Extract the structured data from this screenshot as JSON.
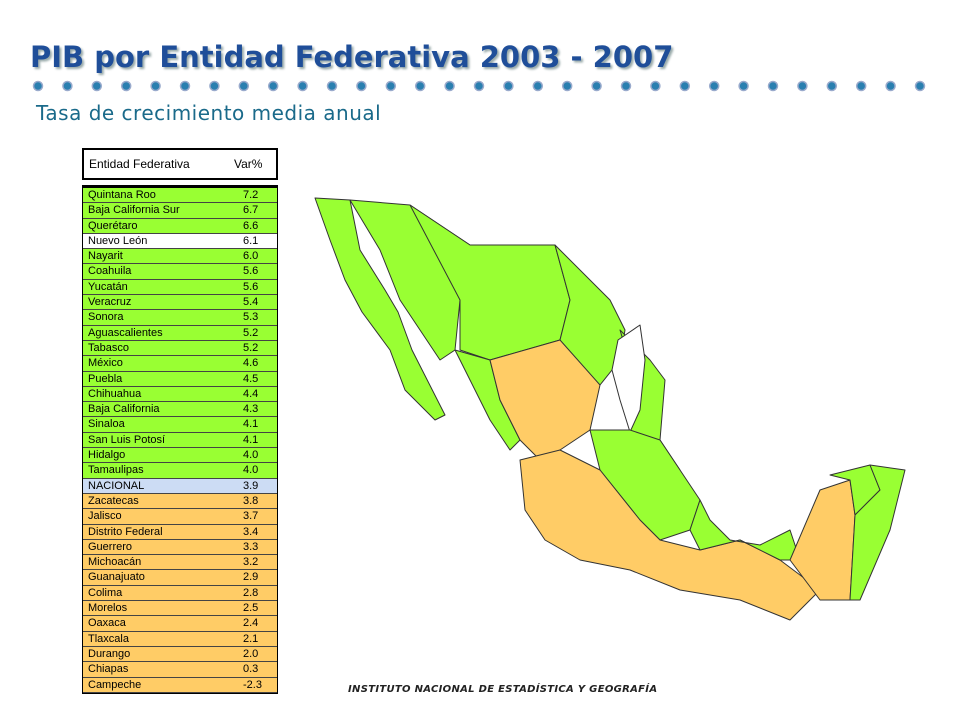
{
  "header": {
    "title": "PIB por Entidad Federativa 2003 - 2007",
    "subtitle": "Tasa de crecimiento media anual"
  },
  "table": {
    "columns": [
      "Entidad Federativa",
      "Var%"
    ],
    "rows": [
      [
        "Quintana Roo",
        "7.2"
      ],
      [
        "Baja California Sur",
        "6.7"
      ],
      [
        "Querétaro",
        "6.6"
      ],
      [
        "Nuevo León",
        "6.1"
      ],
      [
        "Nayarit",
        "6.0"
      ],
      [
        "Coahuila",
        "5.6"
      ],
      [
        "Yucatán",
        "5.6"
      ],
      [
        "Veracruz",
        "5.4"
      ],
      [
        "Sonora",
        "5.3"
      ],
      [
        "Aguascalientes",
        "5.2"
      ],
      [
        "Tabasco",
        "5.2"
      ],
      [
        "México",
        "4.6"
      ],
      [
        "Puebla",
        "4.5"
      ],
      [
        "Chihuahua",
        "4.4"
      ],
      [
        "Baja California",
        "4.3"
      ],
      [
        "Sinaloa",
        "4.1"
      ],
      [
        "San Luis Potosí",
        "4.1"
      ],
      [
        "Hidalgo",
        "4.0"
      ],
      [
        "Tamaulipas",
        "4.0"
      ],
      [
        "NACIONAL",
        "3.9"
      ],
      [
        "Zacatecas",
        "3.8"
      ],
      [
        "Jalisco",
        "3.7"
      ],
      [
        "Distrito Federal",
        "3.4"
      ],
      [
        "Guerrero",
        "3.3"
      ],
      [
        "Michoacán",
        "3.2"
      ],
      [
        "Guanajuato",
        "2.9"
      ],
      [
        "Colima",
        "2.8"
      ],
      [
        "Morelos",
        "2.5"
      ],
      [
        "Oaxaca",
        "2.4"
      ],
      [
        "Tlaxcala",
        "2.1"
      ],
      [
        "Durango",
        "2.0"
      ],
      [
        "Chiapas",
        "0.3"
      ],
      [
        "Campeche",
        "-2.3"
      ]
    ],
    "row_colors": [
      "#99ff33",
      "#99ff33",
      "#99ff33",
      "#ffffff",
      "#99ff33",
      "#99ff33",
      "#99ff33",
      "#99ff33",
      "#99ff33",
      "#99ff33",
      "#99ff33",
      "#99ff33",
      "#99ff33",
      "#99ff33",
      "#99ff33",
      "#99ff33",
      "#99ff33",
      "#99ff33",
      "#99ff33",
      "#ccdcf4",
      "#ffcc66",
      "#ffcc66",
      "#ffcc66",
      "#ffcc66",
      "#ffcc66",
      "#ffcc66",
      "#ffcc66",
      "#ffcc66",
      "#ffcc66",
      "#ffcc66",
      "#ffcc66",
      "#ffcc66",
      "#ffcc66"
    ]
  },
  "footer": "INSTITUTO NACIONAL DE ESTADÍSTICA Y GEOGRAFÍA"
}
